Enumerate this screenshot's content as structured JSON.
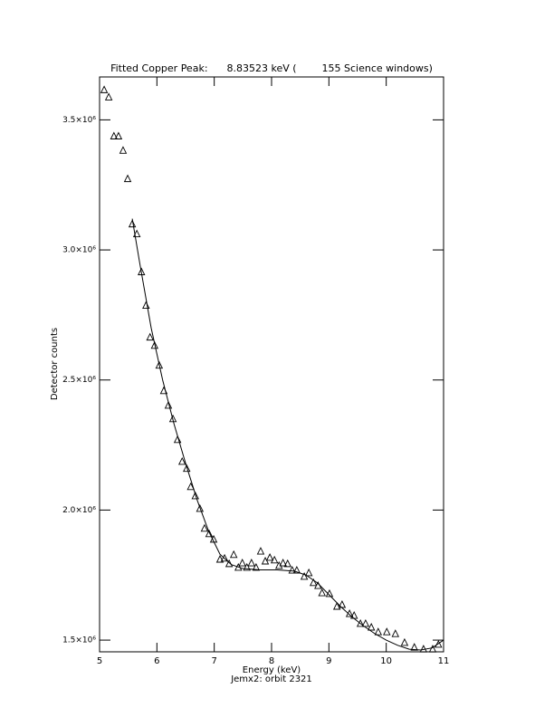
{
  "chart_data": {
    "type": "scatter",
    "title": "Fitted Copper Peak:      8.83523 keV (        155 Science windows)",
    "x_label": "Energy (keV)",
    "subtitle": "Jemx2: orbit 2321",
    "y_label": "Detector counts",
    "xlim": [
      5,
      11
    ],
    "xticks": [
      5,
      6,
      7,
      8,
      9,
      10,
      11
    ],
    "ylim": [
      1455000,
      3665000
    ],
    "yticks": [
      {
        "value": 1500000,
        "label": "1.5×10⁶"
      },
      {
        "value": 2000000,
        "label": "2.0×10⁶"
      },
      {
        "value": 2500000,
        "label": "2.5×10⁶"
      },
      {
        "value": 3000000,
        "label": "3.0×10⁶"
      },
      {
        "value": 3500000,
        "label": "3.5×10⁶"
      }
    ],
    "series": [
      {
        "mode": "markers",
        "marker": "triangle",
        "color": "#000000",
        "x": [
          5.08,
          5.16,
          5.25,
          5.33,
          5.41,
          5.49,
          5.57,
          5.65,
          5.73,
          5.81,
          5.88,
          5.96,
          6.04,
          6.12,
          6.2,
          6.28,
          6.36,
          6.44,
          6.52,
          6.59,
          6.67,
          6.75,
          6.83,
          6.91,
          6.99,
          7.1,
          7.18,
          7.26,
          7.34,
          7.42,
          7.49,
          7.57,
          7.65,
          7.73,
          7.81,
          7.89,
          7.97,
          8.05,
          8.13,
          8.2,
          8.28,
          8.36,
          8.44,
          8.57,
          8.65,
          8.73,
          8.81,
          8.88,
          9.01,
          9.14,
          9.23,
          9.36,
          9.44,
          9.55,
          9.64,
          9.74,
          9.86,
          10.01,
          10.16,
          10.32,
          10.49,
          10.65,
          10.81,
          10.91
        ],
        "values": [
          3615000,
          3587000,
          3437000,
          3437000,
          3382000,
          3273000,
          3099000,
          3061000,
          2915000,
          2786000,
          2664000,
          2632000,
          2556000,
          2458000,
          2402000,
          2350000,
          2270000,
          2186000,
          2159000,
          2089000,
          2054000,
          2005000,
          1929000,
          1908000,
          1887000,
          1810000,
          1814000,
          1793000,
          1828000,
          1779000,
          1796000,
          1779000,
          1796000,
          1779000,
          1841000,
          1803000,
          1817000,
          1807000,
          1786000,
          1796000,
          1793000,
          1768000,
          1768000,
          1744000,
          1758000,
          1720000,
          1709000,
          1681000,
          1678000,
          1629000,
          1636000,
          1601000,
          1594000,
          1563000,
          1563000,
          1549000,
          1531000,
          1531000,
          1524000,
          1490000,
          1472000,
          1465000,
          1465000,
          1483000
        ]
      },
      {
        "mode": "line",
        "color": "#000000",
        "x": [
          5.57,
          5.7,
          5.9,
          6.1,
          6.3,
          6.5,
          6.7,
          6.9,
          7.1,
          7.3,
          7.5,
          7.8,
          8.1,
          8.4,
          8.6,
          8.8,
          9.0,
          9.2,
          9.4,
          9.6,
          9.8,
          10.0,
          10.2,
          10.4,
          10.6,
          10.8,
          11.0
        ],
        "values": [
          3120000,
          2950000,
          2700000,
          2500000,
          2330000,
          2180000,
          2040000,
          1920000,
          1830000,
          1790000,
          1775000,
          1770000,
          1770000,
          1765000,
          1750000,
          1720000,
          1675000,
          1630000,
          1590000,
          1555000,
          1525000,
          1500000,
          1480000,
          1465000,
          1462000,
          1470000,
          1500000
        ]
      }
    ]
  }
}
